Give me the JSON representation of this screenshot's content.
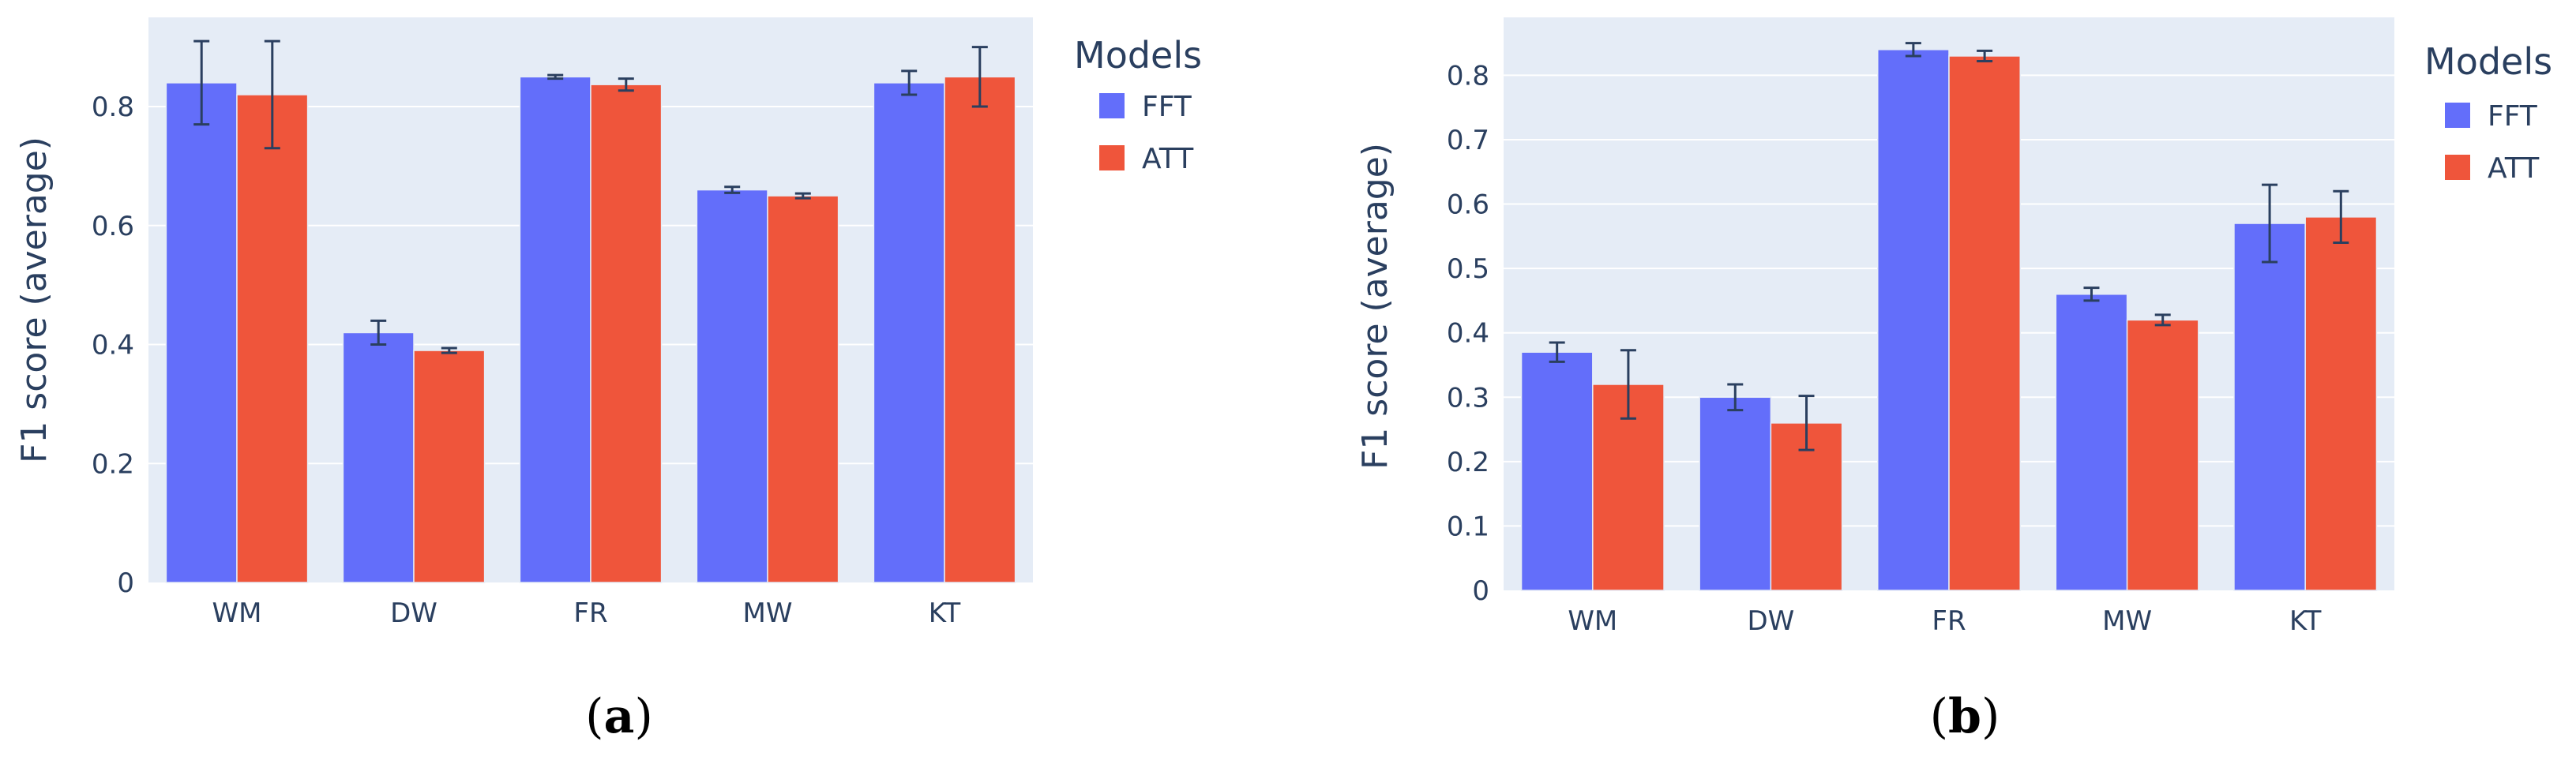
{
  "colors": {
    "FFT": "#636efa",
    "ATT": "#ef553b",
    "plot_bg": "#e5ecf6",
    "text": "#2a3f5f",
    "errorbar": "#2a3f5f"
  },
  "chart_data": [
    {
      "type": "bar",
      "panel": "a",
      "categories": [
        "WM",
        "DW",
        "FR",
        "MW",
        "KT"
      ],
      "series": [
        {
          "name": "FFT",
          "values": [
            0.84,
            0.42,
            0.85,
            0.66,
            0.84
          ],
          "errors": [
            0.07,
            0.02,
            0.003,
            0.005,
            0.02
          ]
        },
        {
          "name": "ATT",
          "values": [
            0.82,
            0.39,
            0.837,
            0.65,
            0.85
          ],
          "errors": [
            0.09,
            0.004,
            0.01,
            0.004,
            0.05
          ]
        }
      ],
      "ylabel": "F1 score (average)",
      "xlabel": "",
      "ylim": [
        0,
        0.95
      ],
      "yticks": [
        0,
        0.2,
        0.4,
        0.6,
        0.8
      ],
      "ytick_labels": [
        "0",
        "0.2",
        "0.4",
        "0.6",
        "0.8"
      ],
      "legend_title": "Models",
      "legend_position": "top-right",
      "caption_letter": "a"
    },
    {
      "type": "bar",
      "panel": "b",
      "categories": [
        "WM",
        "DW",
        "FR",
        "MW",
        "KT"
      ],
      "series": [
        {
          "name": "FFT",
          "values": [
            0.37,
            0.3,
            0.84,
            0.46,
            0.57
          ],
          "errors": [
            0.015,
            0.02,
            0.01,
            0.01,
            0.06
          ]
        },
        {
          "name": "ATT",
          "values": [
            0.32,
            0.26,
            0.83,
            0.42,
            0.58
          ],
          "errors": [
            0.053,
            0.042,
            0.008,
            0.008,
            0.04
          ]
        }
      ],
      "ylabel": "F1 score (average)",
      "xlabel": "",
      "ylim": [
        0,
        0.89
      ],
      "yticks": [
        0,
        0.1,
        0.2,
        0.3,
        0.4,
        0.5,
        0.6,
        0.7,
        0.8
      ],
      "ytick_labels": [
        "0",
        "0.1",
        "0.2",
        "0.3",
        "0.4",
        "0.5",
        "0.6",
        "0.7",
        "0.8"
      ],
      "legend_title": "Models",
      "legend_position": "top-right",
      "caption_letter": "b"
    }
  ]
}
